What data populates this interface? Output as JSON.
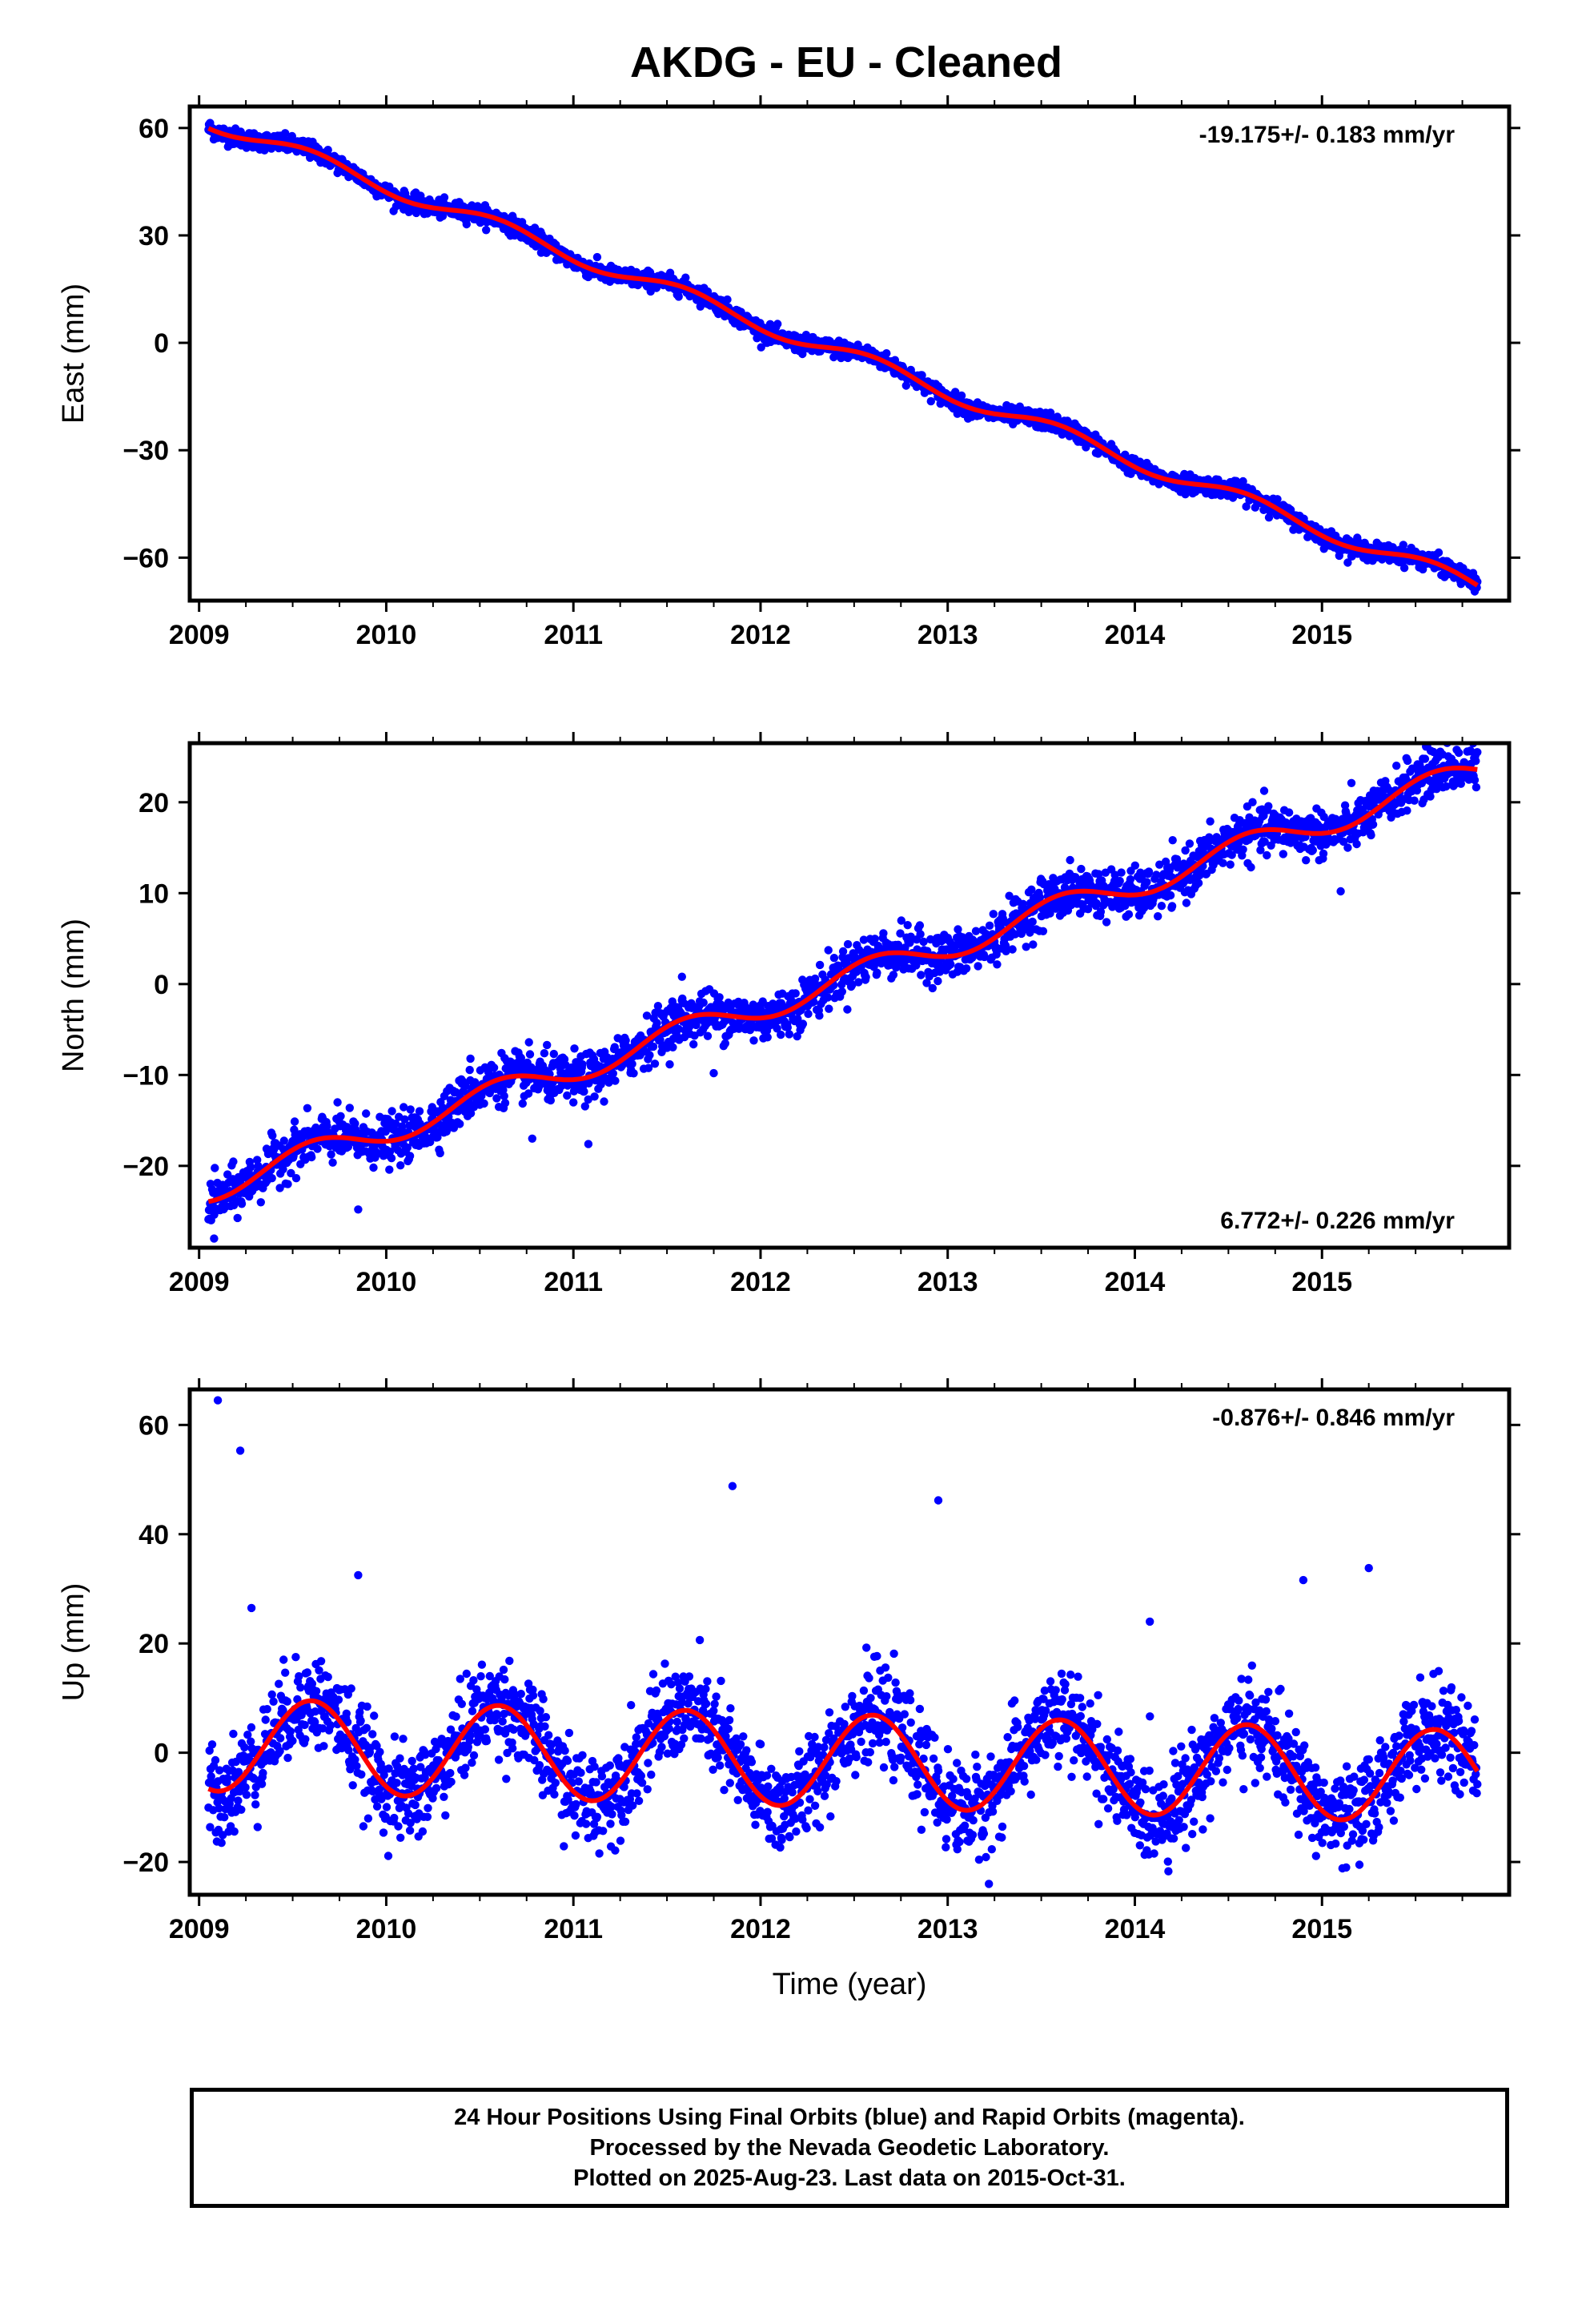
{
  "title": "AKDG  - EU - Cleaned",
  "colors": {
    "final_orbits": "#0000ff",
    "rapid_orbits": "#ff00ff",
    "fit_line": "#ff0000"
  },
  "footer": {
    "line1": "24 Hour Positions Using Final Orbits (blue) and Rapid Orbits (magenta).",
    "line2": "Processed by the Nevada Geodetic Laboratory.",
    "line3": "Plotted on 2025-Aug-23. Last data on 2015-Oct-31."
  },
  "chart_data": [
    {
      "type": "scatter",
      "id": "east",
      "ylabel": "East (mm)",
      "xlabel": "",
      "xlim": [
        2008.95,
        2016.0
      ],
      "ylim": [
        -72,
        66
      ],
      "xticks": [
        2009,
        2010,
        2011,
        2012,
        2013,
        2014,
        2015
      ],
      "yticks": [
        -60,
        -30,
        0,
        30,
        60
      ],
      "rate_label": "-19.175+/- 0.183 mm/yr",
      "rate_position": "top-right",
      "time_range": [
        2009.05,
        2015.83
      ],
      "velocity_mm_per_yr": -19.175,
      "seasonal_amplitude_mm": 2.2,
      "offset_mm": 62,
      "scatter_mm": 1.2,
      "notes_points_shown": "daily positions (blue) with smooth fit (red)"
    },
    {
      "type": "scatter",
      "id": "north",
      "ylabel": "North (mm)",
      "xlabel": "",
      "xlim": [
        2008.95,
        2016.0
      ],
      "ylim": [
        -29,
        26.5
      ],
      "xticks": [
        2009,
        2010,
        2011,
        2012,
        2013,
        2014,
        2015
      ],
      "yticks": [
        -20,
        -10,
        0,
        10,
        20
      ],
      "rate_label": "6.772+/- 0.226 mm/yr",
      "rate_position": "bottom-right",
      "time_range": [
        2009.05,
        2015.83
      ],
      "velocity_mm_per_yr": 6.772,
      "seasonal_amplitude_mm": 1.5,
      "offset_mm": -22.5,
      "scatter_mm": 1.3,
      "outliers": [
        {
          "x": 2009.08,
          "y": -28.0
        },
        {
          "x": 2009.85,
          "y": -24.8
        },
        {
          "x": 2010.45,
          "y": -8.2
        },
        {
          "x": 2010.78,
          "y": -17.0
        },
        {
          "x": 2011.08,
          "y": -17.6
        },
        {
          "x": 2011.58,
          "y": 0.8
        },
        {
          "x": 2011.75,
          "y": -9.8
        },
        {
          "x": 2015.1,
          "y": 10.2
        },
        {
          "x": 2014.5,
          "y": 16.9
        }
      ]
    },
    {
      "type": "scatter",
      "id": "up",
      "ylabel": "Up (mm)",
      "xlabel": "Time (year)",
      "xlim": [
        2008.95,
        2016.0
      ],
      "ylim": [
        -26,
        66.5
      ],
      "xticks": [
        2009,
        2010,
        2011,
        2012,
        2013,
        2014,
        2015
      ],
      "yticks": [
        -20,
        0,
        20,
        40,
        60
      ],
      "rate_label": "-0.876+/- 0.846 mm/yr",
      "rate_position": "top-right",
      "time_range": [
        2009.05,
        2015.83
      ],
      "velocity_mm_per_yr": -0.876,
      "seasonal_amplitude_mm": 8.5,
      "offset_mm": 1.5,
      "scatter_mm": 4.2,
      "outliers": [
        {
          "x": 2009.1,
          "y": 64.5
        },
        {
          "x": 2009.22,
          "y": 55.3
        },
        {
          "x": 2009.28,
          "y": 26.5
        },
        {
          "x": 2009.85,
          "y": 32.5
        },
        {
          "x": 2011.85,
          "y": 48.8
        },
        {
          "x": 2012.95,
          "y": 46.2
        },
        {
          "x": 2014.08,
          "y": 24.0
        },
        {
          "x": 2014.9,
          "y": 31.6
        },
        {
          "x": 2015.25,
          "y": 33.8
        },
        {
          "x": 2013.22,
          "y": -24.0
        },
        {
          "x": 2015.2,
          "y": -20.5
        },
        {
          "x": 2009.12,
          "y": -16.5
        }
      ]
    }
  ]
}
